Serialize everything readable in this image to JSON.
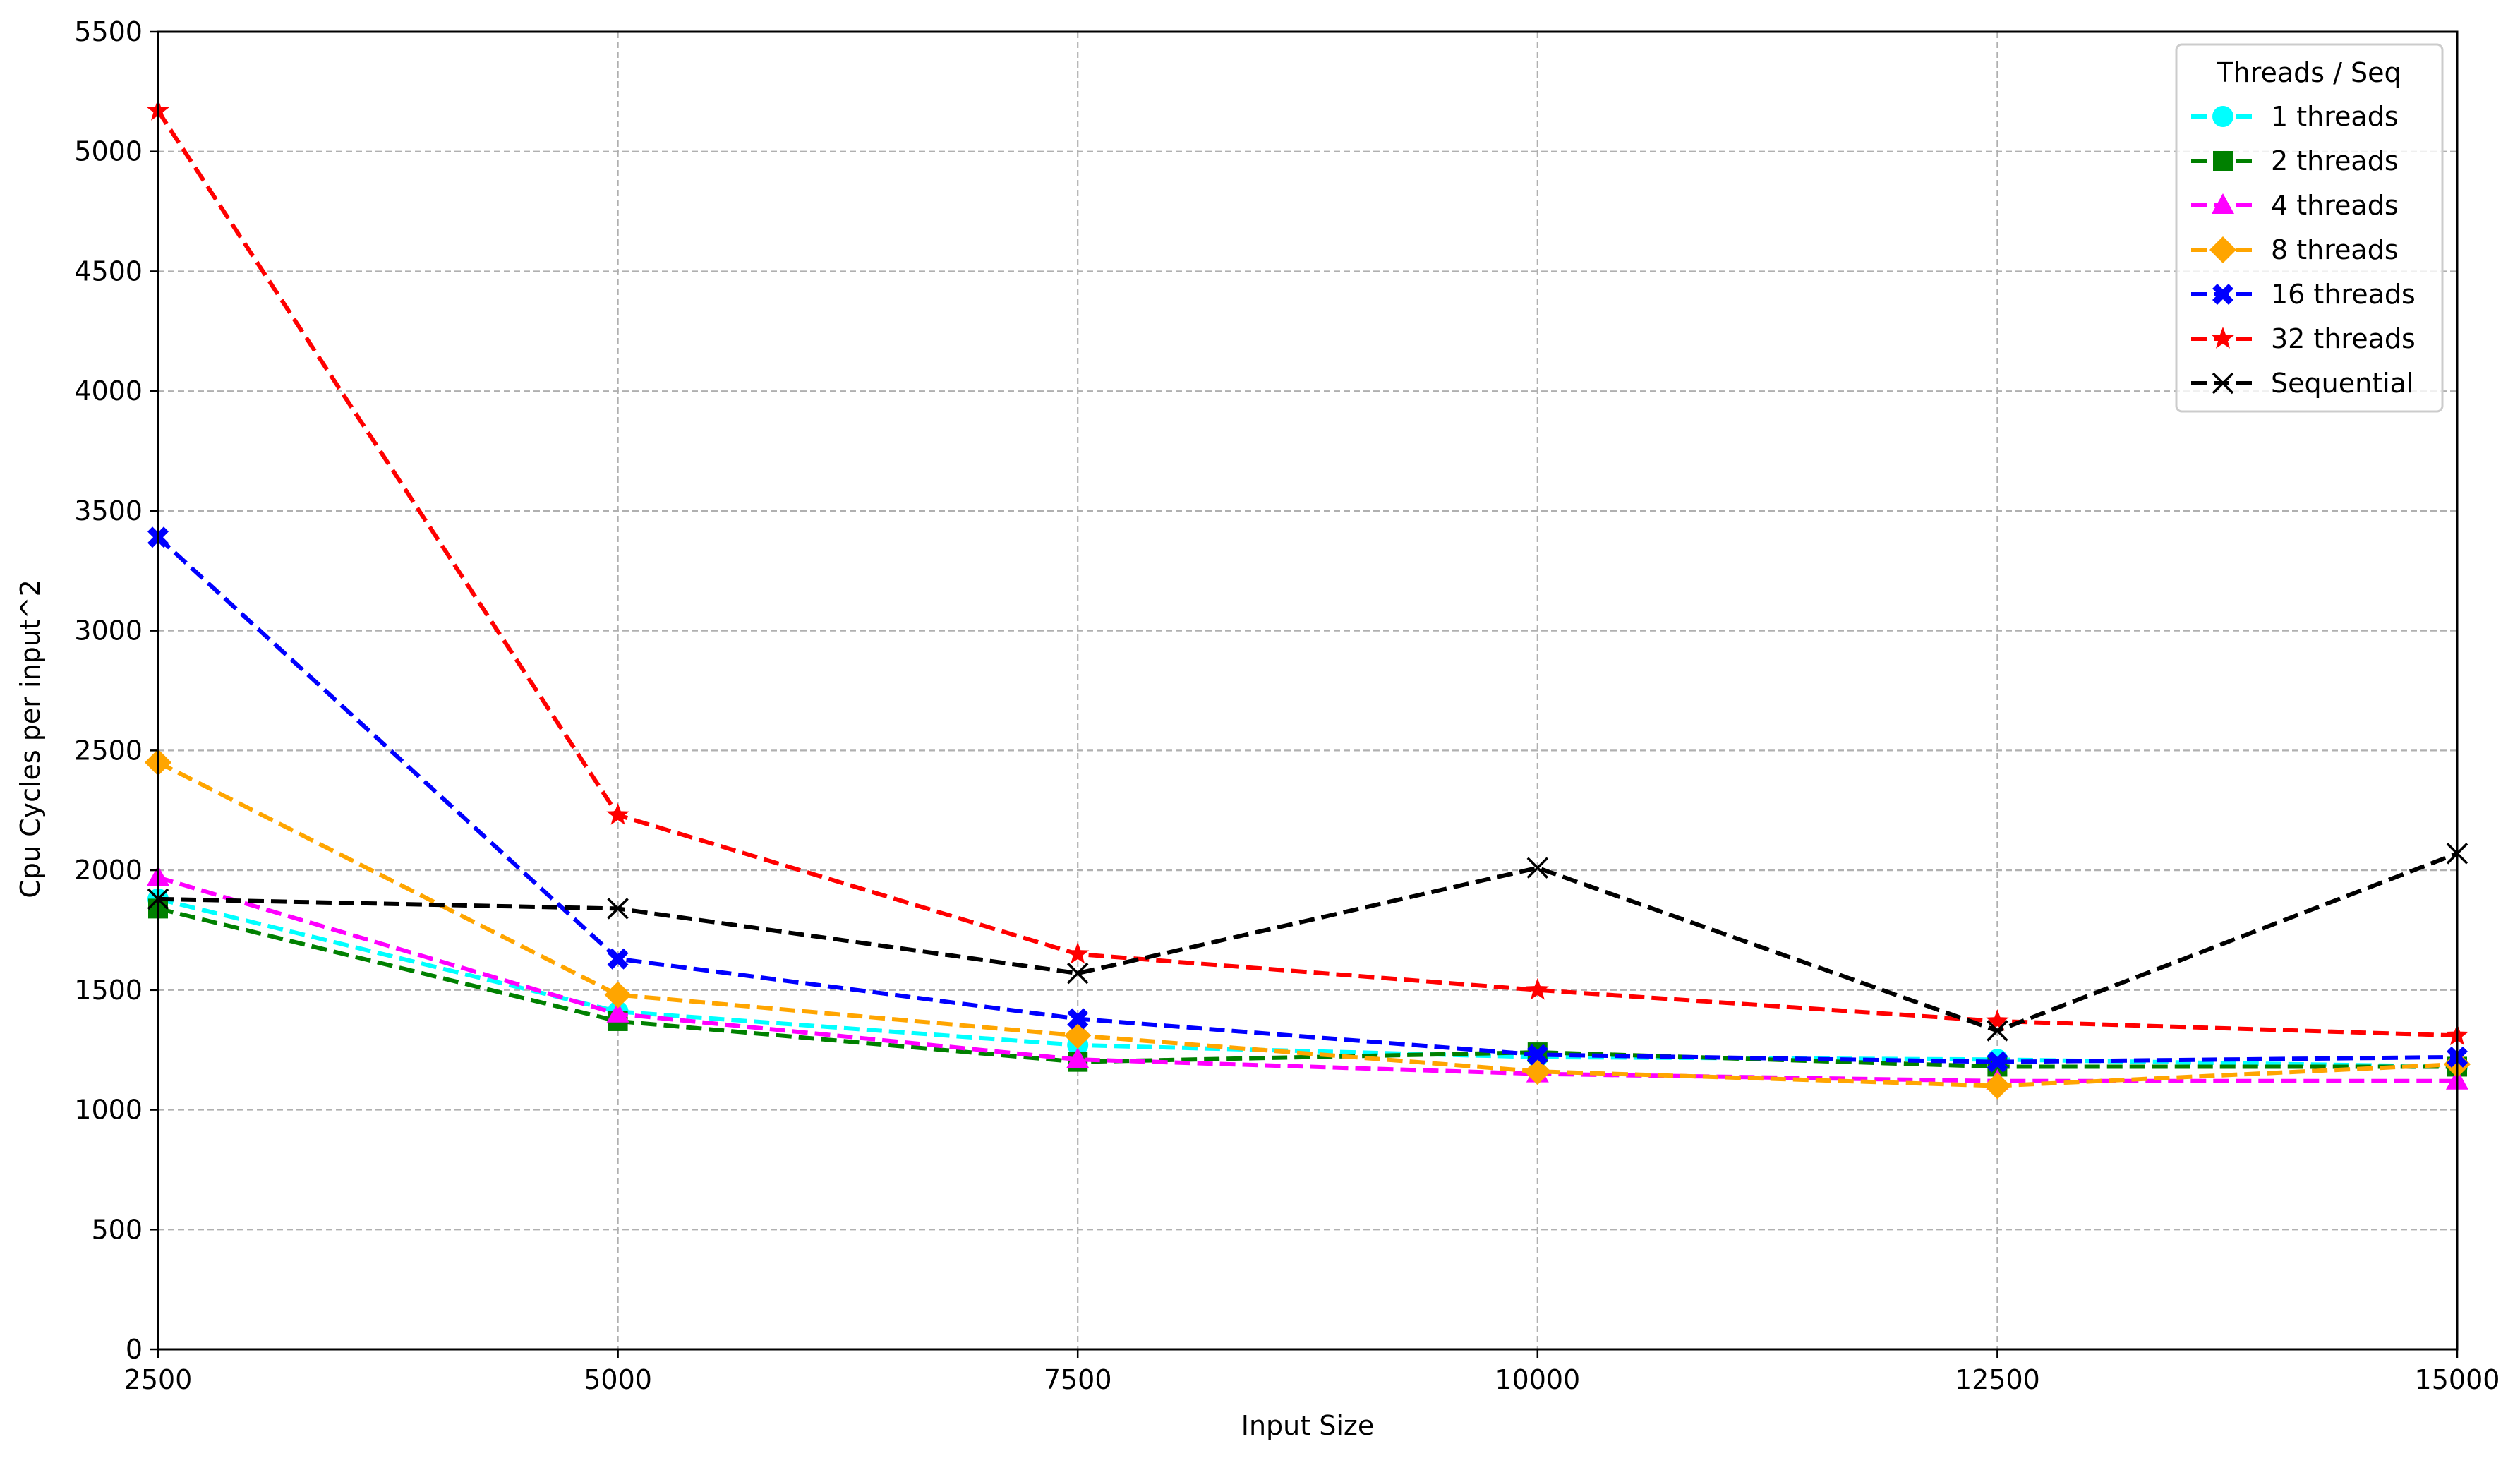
{
  "chart_data": {
    "type": "line",
    "title": "",
    "xlabel": "Input Size",
    "ylabel": "Cpu Cycles per input^2",
    "x": [
      2500,
      5000,
      7500,
      10000,
      12500,
      15000
    ],
    "xlim": [
      2500,
      15000
    ],
    "ylim": [
      0,
      5500
    ],
    "xticks": [
      2500,
      5000,
      7500,
      10000,
      12500,
      15000
    ],
    "yticks": [
      0,
      500,
      1000,
      1500,
      2000,
      2500,
      3000,
      3500,
      4000,
      4500,
      5000,
      5500
    ],
    "grid": true,
    "legend": {
      "title": "Threads / Seq",
      "placement": "top-right"
    },
    "series": [
      {
        "name": "1 threads",
        "color": "#00ffff",
        "marker": "circle",
        "values": [
          1880,
          1410,
          1270,
          1220,
          1210,
          1180
        ]
      },
      {
        "name": "2 threads",
        "color": "#008000",
        "marker": "square",
        "values": [
          1840,
          1370,
          1200,
          1240,
          1180,
          1180
        ]
      },
      {
        "name": "4 threads",
        "color": "#ff00ff",
        "marker": "triangle-up",
        "values": [
          1970,
          1400,
          1210,
          1150,
          1120,
          1120
        ]
      },
      {
        "name": "8 threads",
        "color": "#ffa500",
        "marker": "diamond",
        "values": [
          2450,
          1480,
          1310,
          1160,
          1100,
          1190
        ]
      },
      {
        "name": "16 threads",
        "color": "#0000ff",
        "marker": "x-filled",
        "values": [
          3390,
          1630,
          1380,
          1230,
          1200,
          1220
        ]
      },
      {
        "name": "32 threads",
        "color": "#ff0000",
        "marker": "star",
        "values": [
          5170,
          2230,
          1650,
          1500,
          1370,
          1310
        ]
      },
      {
        "name": "Sequential",
        "color": "#000000",
        "marker": "x",
        "values": [
          1880,
          1840,
          1570,
          2010,
          1330,
          2070
        ]
      }
    ]
  }
}
